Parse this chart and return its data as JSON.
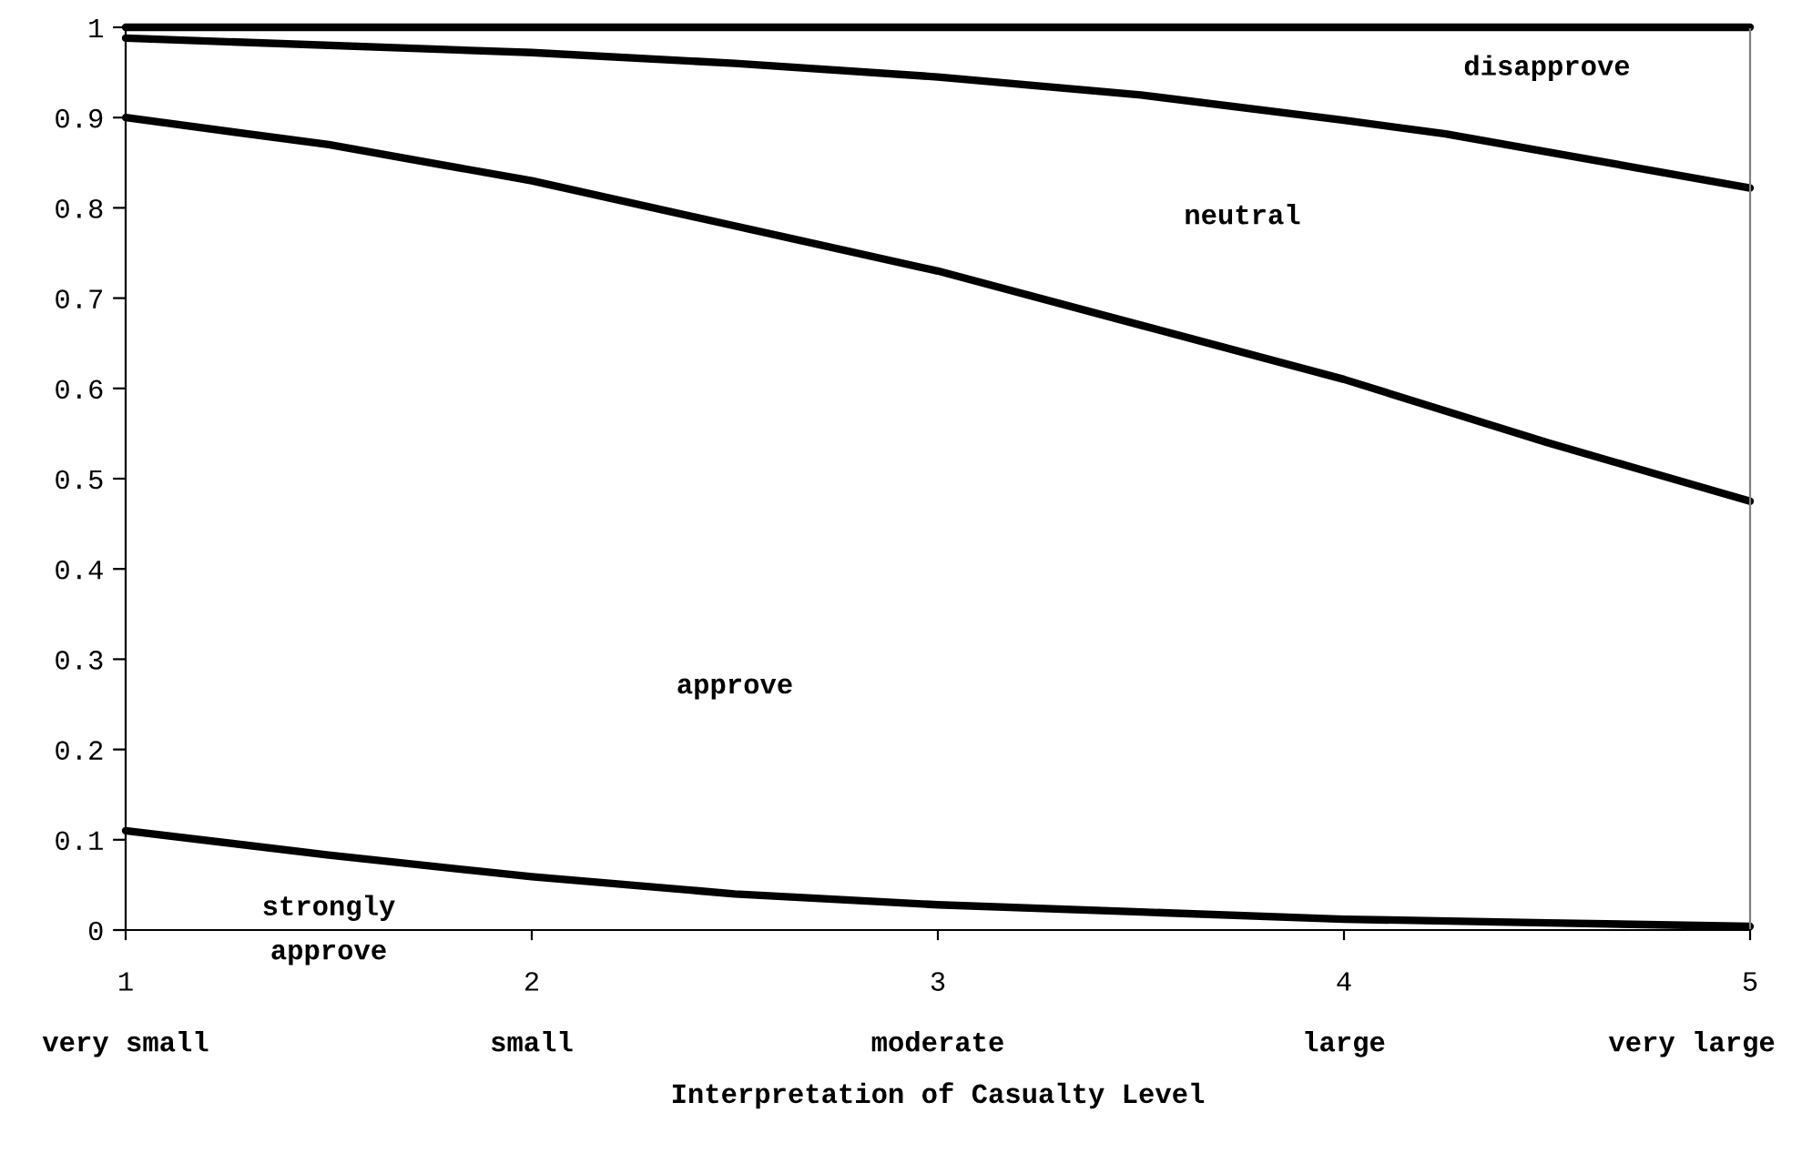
{
  "chart_data": {
    "type": "line",
    "xlabel": "Interpretation of Casualty Level",
    "xlim": [
      1,
      5
    ],
    "xticks": [
      1,
      2,
      3,
      4,
      5
    ],
    "ylim": [
      0,
      1
    ],
    "yticks": [
      0,
      0.1,
      0.2,
      0.3,
      0.4,
      0.5,
      0.6,
      0.7,
      0.8,
      0.9,
      1
    ],
    "grid": false,
    "marker": "none",
    "line_style": "solid",
    "series": [
      {
        "color": "#000000",
        "x": [
          1,
          1.5,
          2,
          2.5,
          3,
          3.5,
          4,
          4.5,
          5
        ],
        "values": [
          0.11,
          0.083,
          0.059,
          0.04,
          0.028,
          0.02,
          0.012,
          0.008,
          0.004
        ]
      },
      {
        "color": "#000000",
        "x": [
          1,
          1.5,
          1.75,
          2,
          2.5,
          3,
          3.5,
          4,
          4.5,
          5
        ],
        "values": [
          0.9,
          0.87,
          0.85,
          0.83,
          0.78,
          0.73,
          0.67,
          0.61,
          0.54,
          0.475
        ]
      },
      {
        "color": "#000000",
        "x": [
          1,
          2,
          2.5,
          3,
          3.5,
          4,
          4.25,
          5
        ],
        "values": [
          0.988,
          0.972,
          0.96,
          0.945,
          0.925,
          0.897,
          0.882,
          0.822
        ]
      },
      {
        "color": "#000000",
        "x": [
          1,
          5
        ],
        "values": [
          1,
          1
        ]
      }
    ],
    "annotations": [
      "strongly\napprove",
      "approve",
      "neutral",
      "disapprove",
      "very small",
      "small",
      "moderate",
      "large",
      "very large"
    ]
  }
}
